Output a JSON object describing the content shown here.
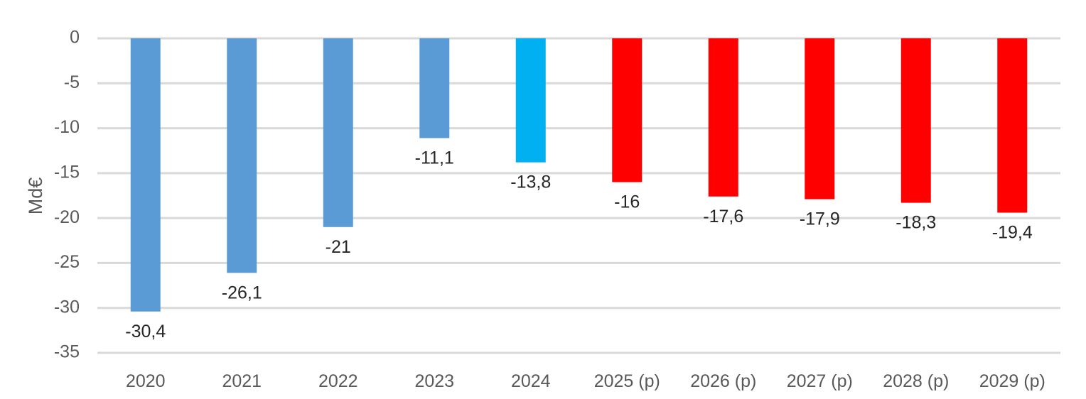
{
  "chart_data": {
    "type": "bar",
    "ylabel": "Md€",
    "ylim": [
      -35,
      0
    ],
    "yticks": [
      0,
      -5,
      -10,
      -15,
      -20,
      -25,
      -30,
      -35
    ],
    "grid": true,
    "categories": [
      "2020",
      "2021",
      "2022",
      "2023",
      "2024",
      "2025 (p)",
      "2026 (p)",
      "2027 (p)",
      "2028 (p)",
      "2029 (p)"
    ],
    "values": [
      -30.4,
      -26.1,
      -21,
      -11.1,
      -13.8,
      -16,
      -17.6,
      -17.9,
      -18.3,
      -19.4
    ],
    "value_labels": [
      "-30,4",
      "-26,1",
      "-21",
      "-11,1",
      "-13,8",
      "-16",
      "-17,6",
      "-17,9",
      "-18,3",
      "-19,4"
    ],
    "bar_colors": [
      "#5B9BD5",
      "#5B9BD5",
      "#5B9BD5",
      "#5B9BD5",
      "#00B0F0",
      "#FF0000",
      "#FF0000",
      "#FF0000",
      "#FF0000",
      "#FF0000"
    ],
    "gridline_color": "#D9D9D9"
  }
}
